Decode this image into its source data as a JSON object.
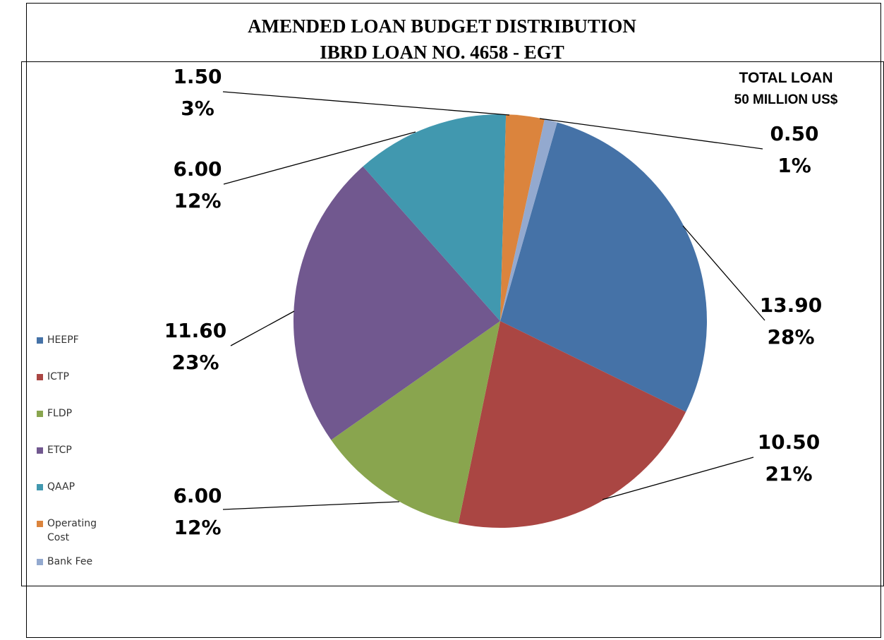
{
  "chart_data": {
    "type": "pie",
    "title": "AMENDED LOAN BUDGET DISTRIBUTION",
    "subtitle": "IBRD LOAN NO. 4658 - EGT",
    "annotation": [
      "TOTAL LOAN",
      "50 MILLION US$"
    ],
    "legend_position": "left",
    "slices": [
      {
        "name": "HEEPF",
        "value": 13.9,
        "value_label": "13.90",
        "percent_label": "28%",
        "color": "#4572A7"
      },
      {
        "name": "ICTP",
        "value": 10.5,
        "value_label": "10.50",
        "percent_label": "21%",
        "color": "#AA4643"
      },
      {
        "name": "FLDP",
        "value": 6.0,
        "value_label": "6.00",
        "percent_label": "12%",
        "color": "#89A54E"
      },
      {
        "name": "ETCP",
        "value": 11.6,
        "value_label": "11.60",
        "percent_label": "23%",
        "color": "#71588F"
      },
      {
        "name": "QAAP",
        "value": 6.0,
        "value_label": "6.00",
        "percent_label": "12%",
        "color": "#4198AF"
      },
      {
        "name": "Operating Cost",
        "value": 1.5,
        "value_label": "1.50",
        "percent_label": "3%",
        "color": "#DB843D"
      },
      {
        "name": "Bank Fee",
        "value": 0.5,
        "value_label": "0.50",
        "percent_label": "1%",
        "color": "#93A9CF"
      }
    ]
  }
}
